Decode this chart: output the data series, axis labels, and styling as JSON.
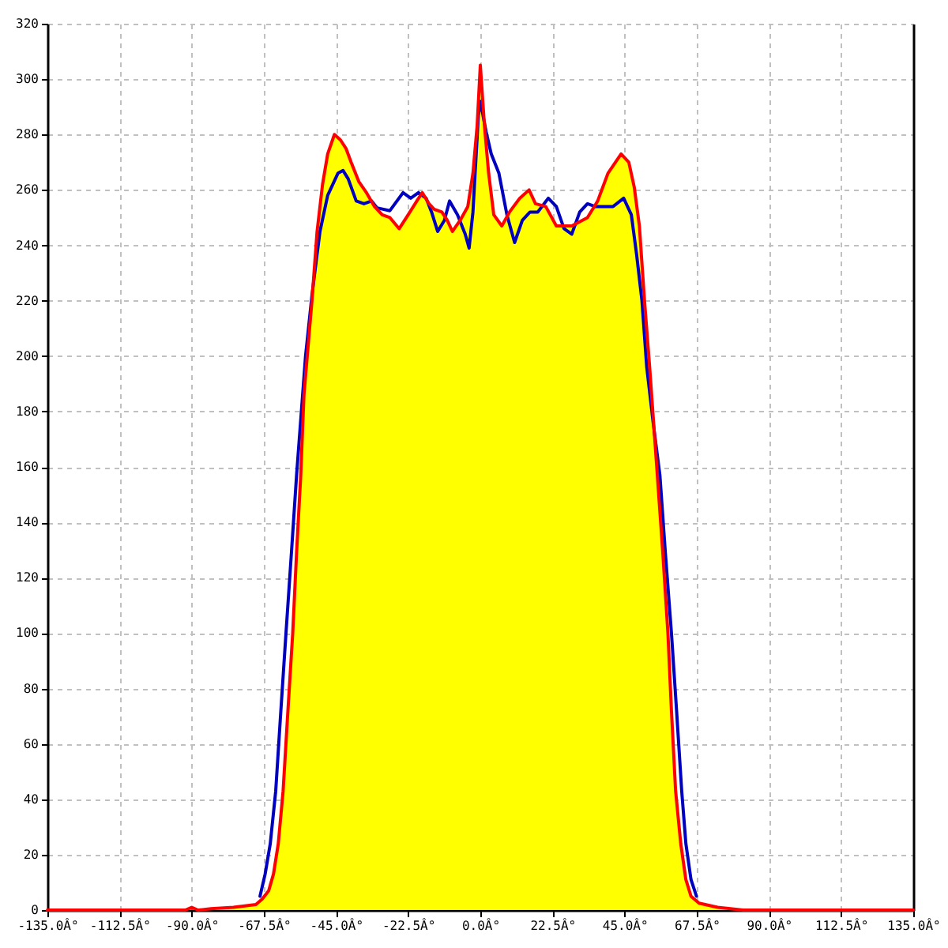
{
  "chart_data": {
    "type": "line",
    "xlim": [
      -135,
      135
    ],
    "ylim": [
      0,
      320
    ],
    "xticks": [
      {
        "value": -135,
        "label": "-135.0Â°"
      },
      {
        "value": -112.5,
        "label": "-112.5Â°"
      },
      {
        "value": -90,
        "label": "-90.0Â°"
      },
      {
        "value": -67.5,
        "label": "-67.5Â°"
      },
      {
        "value": -45,
        "label": "-45.0Â°"
      },
      {
        "value": -22.5,
        "label": "-22.5Â°"
      },
      {
        "value": 0,
        "label": "0.0Â°"
      },
      {
        "value": 22.5,
        "label": "22.5Â°"
      },
      {
        "value": 45,
        "label": "45.0Â°"
      },
      {
        "value": 67.5,
        "label": "67.5Â°"
      },
      {
        "value": 90,
        "label": "90.0Â°"
      },
      {
        "value": 112.5,
        "label": "112.5Â°"
      },
      {
        "value": 135,
        "label": "135.0Â°"
      }
    ],
    "yticks": [
      0,
      20,
      40,
      60,
      80,
      100,
      120,
      140,
      160,
      180,
      200,
      220,
      240,
      260,
      280,
      300,
      320
    ],
    "grid": true,
    "series": [
      {
        "type": "area",
        "color": "#ffff00",
        "x": [
          -84,
          -77,
          -70,
          -68,
          -66,
          -64.5,
          -63,
          -61.5,
          -60,
          -58.5,
          -57.3,
          -56,
          -55,
          -52.5,
          -50.9,
          -49.2,
          -47.6,
          -45.5,
          -43.6,
          -41.9,
          -40.3,
          -37.9,
          -35.5,
          -33,
          -30.6,
          -28.2,
          -25.3,
          -22.5,
          -19.8,
          -18.1,
          -16,
          -14.4,
          -12,
          -10.3,
          -8.7,
          -6.3,
          -3.9,
          -2.3,
          -1,
          0,
          1.3,
          2.6,
          4.2,
          6.7,
          9.1,
          12.3,
          15.2,
          17.2,
          20.4,
          23.7,
          28.5,
          33.4,
          36.6,
          39.8,
          43.9,
          46.3,
          48,
          49.6,
          51.2,
          52.8,
          55.2,
          56.9,
          58.5,
          59.6,
          60.9,
          62.5,
          64.1,
          65.7,
          68.2,
          74,
          82
        ],
        "values": [
          0.5,
          1,
          2,
          4,
          7,
          13,
          24,
          43,
          72,
          100,
          129,
          157,
          186,
          220,
          245,
          262,
          273,
          280,
          278,
          275,
          270,
          263,
          259,
          254,
          251,
          250,
          246,
          251,
          256,
          259,
          255,
          253,
          252,
          249,
          245,
          249,
          254,
          266,
          283,
          305,
          283,
          266,
          251,
          247,
          252,
          257,
          260,
          255,
          254,
          247,
          247,
          250,
          256,
          266,
          273,
          270,
          261,
          247,
          220,
          196,
          157,
          129,
          100,
          72,
          43,
          24,
          11,
          5,
          2.5,
          1,
          0
        ]
      },
      {
        "color": "#0000c0",
        "x": [
          -68.7,
          -67.1,
          -65.5,
          -63.8,
          -62.2,
          -60.6,
          -58.9,
          -57.3,
          -54.5,
          -52.5,
          -50,
          -47.6,
          -44.4,
          -42.8,
          -41.2,
          -38.7,
          -36.3,
          -33.9,
          -32.2,
          -28.2,
          -24.1,
          -21.7,
          -19.3,
          -16.9,
          -15.2,
          -13.3,
          -11.2,
          -9.6,
          -7.1,
          -4.7,
          -3.5,
          -2.3,
          -0.6,
          0,
          1.8,
          3.4,
          5.8,
          8.3,
          10.7,
          13.1,
          15.5,
          17.9,
          21.2,
          23.7,
          26.1,
          28.5,
          31,
          33.4,
          35.8,
          41.4,
          44.7,
          47.1,
          48.7,
          50.4,
          51.9,
          54,
          56,
          57.7,
          59.6,
          61.2,
          62.8,
          64.1,
          65.7,
          67.4
        ],
        "values": [
          5,
          13,
          24,
          43,
          72,
          100,
          129,
          157,
          200,
          222,
          245,
          258,
          266,
          267,
          264,
          256,
          255,
          256,
          253.5,
          252.5,
          259,
          257,
          259,
          257,
          252,
          245,
          249,
          256,
          251,
          244,
          239,
          252,
          287,
          292,
          281,
          273,
          266,
          251,
          241,
          249,
          252,
          252,
          257,
          254,
          246,
          244,
          252,
          255,
          254,
          254,
          257,
          251,
          237,
          220,
          196,
          175,
          157,
          129,
          100,
          72,
          43,
          24,
          11,
          5
        ]
      },
      {
        "color": "#ff0000",
        "x": [
          -135,
          -92,
          -90,
          -88,
          -84,
          -77,
          -70,
          -68,
          -66,
          -64.5,
          -63,
          -61.5,
          -60,
          -58.5,
          -57.3,
          -56,
          -55,
          -52.5,
          -50.9,
          -49.2,
          -47.6,
          -45.5,
          -43.6,
          -41.9,
          -40.3,
          -37.9,
          -35.5,
          -33,
          -30.6,
          -28.2,
          -25.3,
          -22.5,
          -19.8,
          -18.1,
          -16,
          -14.4,
          -12,
          -10.3,
          -8.7,
          -6.3,
          -3.9,
          -2.3,
          -1,
          0,
          1.3,
          2.6,
          4.2,
          6.7,
          9.1,
          12.3,
          15.2,
          17.2,
          20.4,
          23.7,
          28.5,
          33.4,
          36.6,
          39.8,
          43.9,
          46.3,
          48,
          49.6,
          51.2,
          52.8,
          55.2,
          56.9,
          58.5,
          59.6,
          60.9,
          62.5,
          64.1,
          65.7,
          68.2,
          74,
          82,
          135
        ],
        "values": [
          0,
          0,
          1,
          0,
          0.5,
          1,
          2,
          4,
          7,
          13,
          24,
          43,
          72,
          100,
          129,
          157,
          186,
          220,
          245,
          262,
          273,
          280,
          278,
          275,
          270,
          263,
          259,
          254,
          251,
          250,
          246,
          251,
          256,
          259,
          255,
          253,
          252,
          249,
          245,
          249,
          254,
          266,
          283,
          305,
          283,
          266,
          251,
          247,
          252,
          257,
          260,
          255,
          254,
          247,
          247,
          250,
          256,
          266,
          273,
          270,
          261,
          247,
          220,
          196,
          157,
          129,
          100,
          72,
          43,
          24,
          11,
          5,
          2.5,
          1,
          0,
          0
        ]
      }
    ]
  }
}
